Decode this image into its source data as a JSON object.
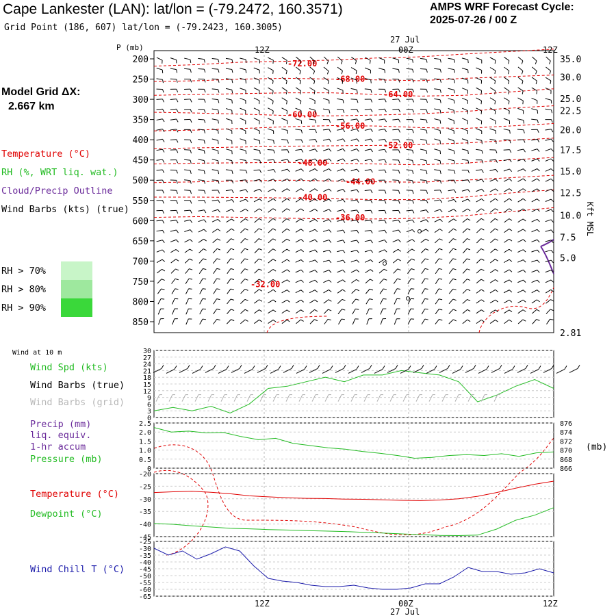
{
  "header": {
    "title": "Cape Lankester (LAN):  lat/lon = (-79.2472, 160.3571)",
    "grid_point": "Grid Point (186, 607) lat/lon = (-79.2423, 160.3005)",
    "cycle_label": "AMPS WRF Forecast Cycle:",
    "cycle_value": "2025-07-26 / 00  Z"
  },
  "model_grid": {
    "label": "Model Grid ΔX:",
    "value": "2.667 km"
  },
  "legend_upper": {
    "temperature": "Temperature (°C)",
    "rh": "RH (%, WRT liq. wat.)",
    "cloud": "Cloud/Precip Outline",
    "wind": "Wind Barbs (kts) (true)",
    "rh70": "RH > 70%",
    "rh80": "RH > 80%",
    "rh90": "RH > 90%"
  },
  "legend_wind": {
    "title": "Wind at 10 m",
    "spd": "Wind Spd (kts)",
    "barbs_true": "Wind Barbs (true)",
    "barbs_grid": "Wind Barbs (grid)"
  },
  "legend_precip": {
    "l1": "Precip (mm)",
    "l2": "liq. equiv.",
    "l3": "1-hr accum",
    "l4": "Pressure (mb)"
  },
  "legend_temp": {
    "temp": "Temperature (°C)",
    "dew": "Dewpoint (°C)"
  },
  "legend_chill": {
    "chill": "Wind Chill T (°C)"
  },
  "colors": {
    "temperature": "#e00000",
    "green": "#22bb22",
    "purple": "#6a2a9a",
    "blue": "#1a1aaa",
    "rh70": "#c8f5c8",
    "rh80": "#9ee89e",
    "rh90": "#3ad83a",
    "gray": "#b0b0b0"
  },
  "chart_data": [
    {
      "type": "line",
      "name": "cross-section",
      "ylabel": "P (mb)",
      "y2label": "Kft MSL",
      "date_label": "27 Jul",
      "x_ticks": [
        "12Z",
        "00Z",
        "12Z"
      ],
      "p_ticks": [
        "200",
        "250",
        "300",
        "350",
        "400",
        "450",
        "500",
        "550",
        "600",
        "650",
        "700",
        "750",
        "800",
        "850"
      ],
      "kft_ticks": [
        "35.0",
        "30.0",
        "25.0",
        "22.5",
        "20.0",
        "17.5",
        "15.0",
        "12.5",
        "10.0",
        "7.5",
        "5.0",
        "2.81"
      ],
      "temp_contours": [
        {
          "label": "-72.00",
          "p": [
            218,
            214,
            208,
            206,
            203,
            198,
            195,
            188,
            182,
            176
          ],
          "lp": 212
        },
        {
          "label": "-68.00",
          "p": [
            256,
            254,
            250,
            248,
            250,
            252,
            254,
            248,
            244,
            240
          ],
          "lp": 250
        },
        {
          "label": "-64.00",
          "p": [
            290,
            288,
            286,
            284,
            284,
            288,
            292,
            290,
            282,
            274
          ],
          "lp": 288
        },
        {
          "label": "-60.00",
          "p": [
            332,
            334,
            337,
            340,
            341,
            339,
            336,
            330,
            322,
            316
          ],
          "lp": 338
        },
        {
          "label": "-56.00",
          "p": [
            378,
            376,
            372,
            368,
            365,
            366,
            370,
            372,
            366,
            360
          ],
          "lp": 366
        },
        {
          "label": "-52.00",
          "p": [
            422,
            420,
            418,
            416,
            415,
            414,
            412,
            408,
            402,
            396
          ],
          "lp": 414
        },
        {
          "label": "-48.00",
          "p": [
            460,
            458,
            457,
            456,
            458,
            460,
            462,
            458,
            450,
            444
          ],
          "lp": 457
        },
        {
          "label": "-44.00",
          "p": [
            506,
            504,
            502,
            500,
            502,
            504,
            505,
            500,
            494,
            488
          ],
          "lp": 504
        },
        {
          "label": "-40.00",
          "p": [
            542,
            542,
            543,
            544,
            546,
            548,
            548,
            542,
            532,
            524
          ],
          "lp": 543
        },
        {
          "label": "-36.00",
          "p": [
            592,
            590,
            592,
            594,
            596,
            596,
            594,
            588,
            578,
            568
          ],
          "lp": 593
        }
      ],
      "neg32_label": "-32.00"
    },
    {
      "type": "line",
      "name": "wind-10m",
      "ylim": [
        0,
        30
      ],
      "y_ticks": [
        "30",
        "27",
        "24",
        "21",
        "18",
        "15",
        "12",
        "9",
        "6",
        "3",
        "0"
      ],
      "series": [
        {
          "name": "Wind Spd (kts)",
          "values": [
            3,
            4.5,
            3,
            5,
            2,
            6,
            13,
            14,
            16,
            18,
            16,
            19,
            19,
            21,
            20,
            19,
            16,
            7,
            10,
            14,
            17,
            13
          ]
        }
      ]
    },
    {
      "type": "line",
      "name": "precip-pressure",
      "ylim": [
        0,
        2.5
      ],
      "y_ticks": [
        "2.5",
        "2.0",
        "1.5",
        "1.0",
        "0.5",
        "0"
      ],
      "y2lim": [
        866,
        876
      ],
      "y2_ticks": [
        "876",
        "874",
        "872",
        "870",
        "868",
        "866"
      ],
      "y2label": "(mb)",
      "series": [
        {
          "name": "Pressure (mb)",
          "values": [
            875.0,
            874.0,
            874.2,
            873.8,
            873.9,
            873.0,
            872.3,
            872.6,
            871.5,
            871.0,
            870.5,
            870.2,
            869.7,
            869.3,
            868.8,
            868.2,
            868.4,
            868.8,
            869.0,
            868.8,
            869.2,
            868.6,
            869.4,
            869.6
          ]
        }
      ]
    },
    {
      "type": "line",
      "name": "temperature-dewpoint",
      "ylim": [
        -45,
        -20
      ],
      "y_ticks": [
        "-20",
        "-25",
        "-30",
        "-35",
        "-40",
        "-45"
      ],
      "series": [
        {
          "name": "Temperature (°C)",
          "values": [
            -27.5,
            -27.2,
            -27,
            -27.4,
            -28,
            -28.8,
            -29.2,
            -29.6,
            -29.8,
            -29.9,
            -30.1,
            -30.2,
            -30.4,
            -30.6,
            -30.7,
            -30.5,
            -30,
            -29,
            -27.5,
            -25.8,
            -24.2,
            -23
          ]
        },
        {
          "name": "Dewpoint (°C)",
          "values": [
            -39.8,
            -40.1,
            -40.7,
            -41.2,
            -41.7,
            -41.9,
            -42.2,
            -42.4,
            -42.6,
            -42.8,
            -43,
            -43.3,
            -43.6,
            -43.9,
            -44.2,
            -44.5,
            -44.6,
            -44.4,
            -42,
            -38.5,
            -36.5,
            -33.5
          ]
        }
      ]
    },
    {
      "type": "line",
      "name": "wind-chill",
      "ylim": [
        -65,
        -25
      ],
      "y_ticks": [
        "-25",
        "-30",
        "-35",
        "-40",
        "-45",
        "-50",
        "-55",
        "-60",
        "-65"
      ],
      "x_ticks": [
        "12Z",
        "00Z",
        "12Z"
      ],
      "date_label": "27 Jul",
      "series": [
        {
          "name": "Wind Chill T (°C)",
          "values": [
            -30,
            -35,
            -32,
            -38,
            -34,
            -29,
            -32,
            -43,
            -52,
            -54,
            -55,
            -57,
            -58,
            -58,
            -57,
            -59,
            -60,
            -60,
            -59,
            -56,
            -56,
            -51,
            -44,
            -47,
            -47,
            -49,
            -48,
            -45,
            -48
          ]
        }
      ]
    }
  ]
}
